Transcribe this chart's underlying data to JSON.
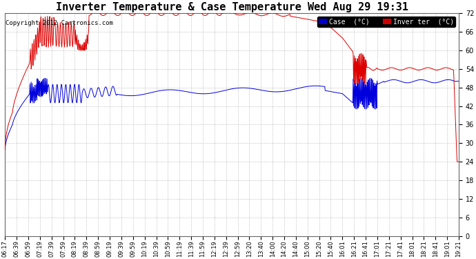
{
  "title": "Inverter Temperature & Case Temperature Wed Aug 29 19:31",
  "copyright": "Copyright 2012 Cartronics.com",
  "ylim": [
    0.0,
    72.0
  ],
  "yticks": [
    0.0,
    6.0,
    12.0,
    18.0,
    24.0,
    30.0,
    36.0,
    42.0,
    48.0,
    54.0,
    60.0,
    66.0,
    72.0
  ],
  "xtick_labels": [
    "06:17",
    "06:39",
    "06:59",
    "07:19",
    "07:39",
    "07:59",
    "08:19",
    "08:39",
    "08:59",
    "09:19",
    "09:39",
    "09:59",
    "10:19",
    "10:39",
    "10:59",
    "11:19",
    "11:39",
    "11:59",
    "12:19",
    "12:39",
    "12:59",
    "13:20",
    "13:40",
    "14:00",
    "14:20",
    "14:40",
    "15:00",
    "15:20",
    "15:40",
    "16:01",
    "16:21",
    "16:41",
    "17:01",
    "17:21",
    "17:41",
    "18:01",
    "18:21",
    "18:41",
    "19:01",
    "19:21"
  ],
  "bg_color": "#ffffff",
  "plot_bg_color": "#ffffff",
  "grid_color": "#999999",
  "title_fontsize": 11,
  "case_color": "#0000dd",
  "inverter_color": "#dd0000",
  "legend_case_bg": "#0000cc",
  "legend_inv_bg": "#cc0000",
  "legend_case_label": "Case  (°C)",
  "legend_inv_label": "Inver ter  (°C)"
}
